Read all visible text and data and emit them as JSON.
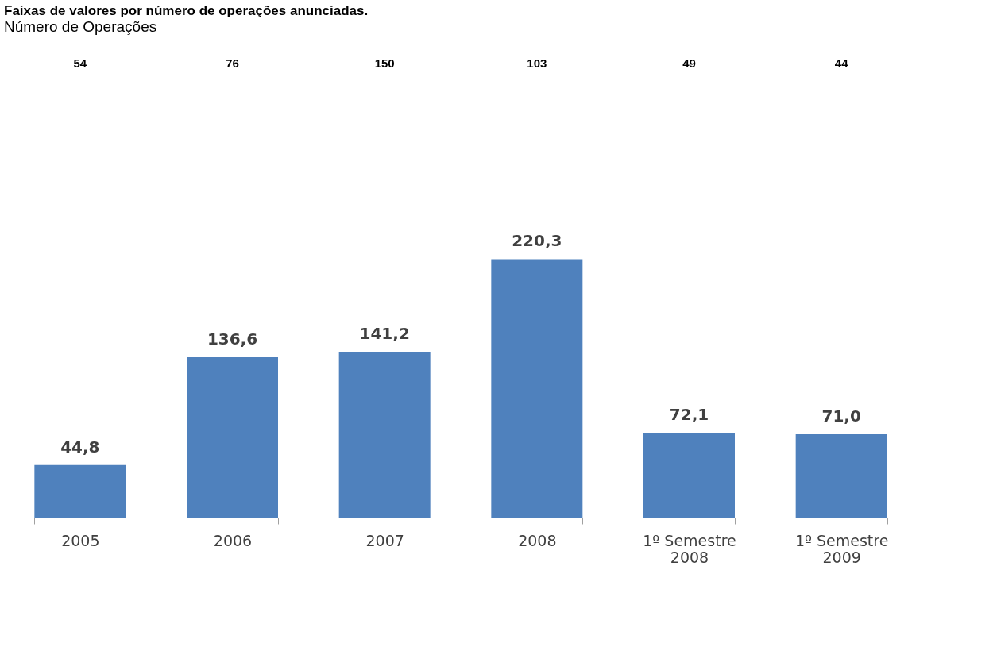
{
  "chart_data": {
    "type": "bar",
    "title": "Faixas de valores por número de operações anunciadas.",
    "subtitle": "Número de Operações",
    "categories": [
      "2005",
      "2006",
      "2007",
      "2008",
      "1º Semestre 2008",
      "1º Semestre 2009"
    ],
    "values": [
      44.8,
      136.6,
      141.2,
      220.3,
      72.1,
      71.0
    ],
    "value_labels": [
      "44,8",
      "136,6",
      "141,2",
      "220,3",
      "72,1",
      "71,0"
    ],
    "annotations": [
      "54",
      "76",
      "150",
      "103",
      "49",
      "44"
    ],
    "color": "#4f81bd",
    "grid": false,
    "tick_labels": "x"
  }
}
